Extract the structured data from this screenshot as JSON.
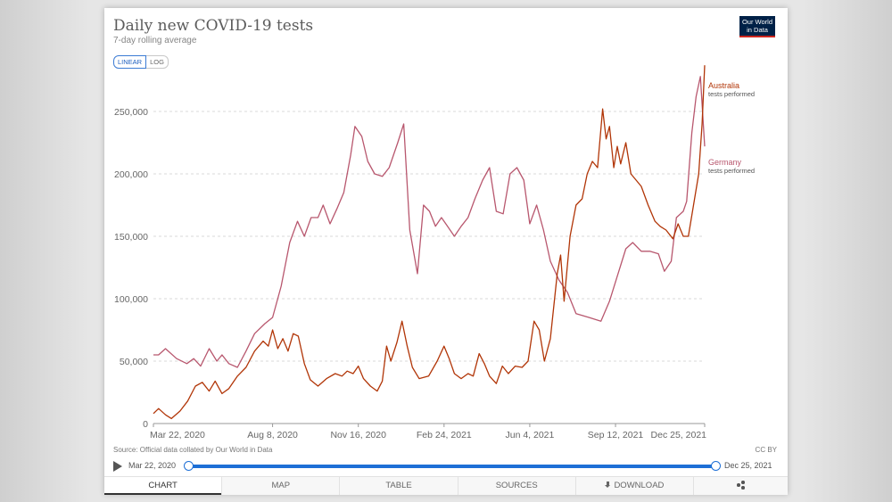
{
  "header": {
    "title": "Daily new COVID-19 tests",
    "subtitle": "7-day rolling average",
    "scale_linear": "LINEAR",
    "scale_log": "LOG",
    "logo_line1": "Our World",
    "logo_line2": "in Data"
  },
  "colors": {
    "australia": "#b13507",
    "germany": "#b8576e",
    "accent": "#1d6fd6"
  },
  "chart_data": {
    "type": "line",
    "title": "Daily new COVID-19 tests",
    "subtitle": "7-day rolling average",
    "ylim": [
      0,
      290000
    ],
    "y_ticks": [
      0,
      50000,
      100000,
      150000,
      200000,
      250000
    ],
    "y_tick_labels": [
      "0",
      "50,000",
      "100,000",
      "150,000",
      "200,000",
      "250,000"
    ],
    "x_range": [
      "2020-03-22",
      "2021-12-25"
    ],
    "x_ticks": [
      "2020-03-22",
      "2020-08-08",
      "2020-11-16",
      "2021-02-24",
      "2021-06-04",
      "2021-09-12",
      "2021-12-25"
    ],
    "x_tick_labels": [
      "Mar 22, 2020",
      "Aug 8, 2020",
      "Nov 16, 2020",
      "Feb 24, 2021",
      "Jun 4, 2021",
      "Sep 12, 2021",
      "Dec 25, 2021"
    ],
    "grid": "horizontal",
    "series": [
      {
        "name": "Australia",
        "label_sub": "tests performed",
        "color": "#b13507",
        "points": [
          [
            "2020-03-22",
            8000
          ],
          [
            "2020-03-28",
            12000
          ],
          [
            "2020-04-05",
            7000
          ],
          [
            "2020-04-12",
            4000
          ],
          [
            "2020-04-22",
            10000
          ],
          [
            "2020-05-01",
            18000
          ],
          [
            "2020-05-10",
            30000
          ],
          [
            "2020-05-18",
            33000
          ],
          [
            "2020-05-26",
            26000
          ],
          [
            "2020-06-02",
            34000
          ],
          [
            "2020-06-10",
            24000
          ],
          [
            "2020-06-18",
            28000
          ],
          [
            "2020-06-28",
            38000
          ],
          [
            "2020-07-08",
            45000
          ],
          [
            "2020-07-18",
            58000
          ],
          [
            "2020-07-28",
            66000
          ],
          [
            "2020-08-03",
            62000
          ],
          [
            "2020-08-08",
            75000
          ],
          [
            "2020-08-14",
            60000
          ],
          [
            "2020-08-20",
            68000
          ],
          [
            "2020-08-26",
            58000
          ],
          [
            "2020-09-01",
            72000
          ],
          [
            "2020-09-07",
            70000
          ],
          [
            "2020-09-14",
            48000
          ],
          [
            "2020-09-21",
            35000
          ],
          [
            "2020-09-30",
            30000
          ],
          [
            "2020-10-10",
            36000
          ],
          [
            "2020-10-20",
            40000
          ],
          [
            "2020-10-28",
            38000
          ],
          [
            "2020-11-03",
            42000
          ],
          [
            "2020-11-10",
            40000
          ],
          [
            "2020-11-16",
            46000
          ],
          [
            "2020-11-22",
            36000
          ],
          [
            "2020-11-30",
            30000
          ],
          [
            "2020-12-08",
            26000
          ],
          [
            "2020-12-14",
            34000
          ],
          [
            "2020-12-19",
            62000
          ],
          [
            "2020-12-24",
            50000
          ],
          [
            "2020-12-31",
            65000
          ],
          [
            "2021-01-06",
            82000
          ],
          [
            "2021-01-12",
            62000
          ],
          [
            "2021-01-18",
            45000
          ],
          [
            "2021-01-26",
            36000
          ],
          [
            "2021-02-06",
            38000
          ],
          [
            "2021-02-16",
            50000
          ],
          [
            "2021-02-24",
            62000
          ],
          [
            "2021-03-02",
            52000
          ],
          [
            "2021-03-08",
            40000
          ],
          [
            "2021-03-16",
            36000
          ],
          [
            "2021-03-24",
            40000
          ],
          [
            "2021-03-30",
            38000
          ],
          [
            "2021-04-06",
            56000
          ],
          [
            "2021-04-12",
            48000
          ],
          [
            "2021-04-18",
            38000
          ],
          [
            "2021-04-26",
            32000
          ],
          [
            "2021-05-03",
            46000
          ],
          [
            "2021-05-10",
            40000
          ],
          [
            "2021-05-18",
            46000
          ],
          [
            "2021-05-26",
            45000
          ],
          [
            "2021-06-02",
            50000
          ],
          [
            "2021-06-09",
            82000
          ],
          [
            "2021-06-15",
            75000
          ],
          [
            "2021-06-21",
            50000
          ],
          [
            "2021-06-28",
            68000
          ],
          [
            "2021-07-06",
            120000
          ],
          [
            "2021-07-10",
            135000
          ],
          [
            "2021-07-14",
            98000
          ],
          [
            "2021-07-21",
            150000
          ],
          [
            "2021-07-28",
            175000
          ],
          [
            "2021-08-04",
            180000
          ],
          [
            "2021-08-10",
            200000
          ],
          [
            "2021-08-16",
            210000
          ],
          [
            "2021-08-22",
            205000
          ],
          [
            "2021-08-28",
            252000
          ],
          [
            "2021-09-01",
            228000
          ],
          [
            "2021-09-05",
            238000
          ],
          [
            "2021-09-10",
            205000
          ],
          [
            "2021-09-14",
            222000
          ],
          [
            "2021-09-18",
            208000
          ],
          [
            "2021-09-24",
            225000
          ],
          [
            "2021-09-30",
            200000
          ],
          [
            "2021-10-06",
            195000
          ],
          [
            "2021-10-12",
            190000
          ],
          [
            "2021-10-20",
            175000
          ],
          [
            "2021-10-28",
            162000
          ],
          [
            "2021-11-03",
            158000
          ],
          [
            "2021-11-10",
            155000
          ],
          [
            "2021-11-18",
            148000
          ],
          [
            "2021-11-24",
            160000
          ],
          [
            "2021-11-30",
            150000
          ],
          [
            "2021-12-06",
            150000
          ],
          [
            "2021-12-12",
            175000
          ],
          [
            "2021-12-18",
            200000
          ],
          [
            "2021-12-22",
            240000
          ],
          [
            "2021-12-25",
            287000
          ]
        ]
      },
      {
        "name": "Germany",
        "label_sub": "tests performed",
        "color": "#b8576e",
        "points": [
          [
            "2020-03-22",
            55000
          ],
          [
            "2020-03-28",
            55000
          ],
          [
            "2020-04-05",
            60000
          ],
          [
            "2020-04-18",
            52000
          ],
          [
            "2020-04-30",
            48000
          ],
          [
            "2020-05-08",
            52000
          ],
          [
            "2020-05-16",
            46000
          ],
          [
            "2020-05-26",
            60000
          ],
          [
            "2020-06-04",
            50000
          ],
          [
            "2020-06-10",
            55000
          ],
          [
            "2020-06-18",
            48000
          ],
          [
            "2020-06-28",
            45000
          ],
          [
            "2020-07-08",
            58000
          ],
          [
            "2020-07-18",
            72000
          ],
          [
            "2020-07-30",
            80000
          ],
          [
            "2020-08-08",
            85000
          ],
          [
            "2020-08-18",
            110000
          ],
          [
            "2020-08-28",
            145000
          ],
          [
            "2020-09-06",
            162000
          ],
          [
            "2020-09-14",
            150000
          ],
          [
            "2020-09-22",
            165000
          ],
          [
            "2020-09-30",
            165000
          ],
          [
            "2020-10-06",
            175000
          ],
          [
            "2020-10-14",
            160000
          ],
          [
            "2020-10-22",
            172000
          ],
          [
            "2020-10-30",
            185000
          ],
          [
            "2020-11-07",
            215000
          ],
          [
            "2020-11-12",
            238000
          ],
          [
            "2020-11-20",
            230000
          ],
          [
            "2020-11-27",
            210000
          ],
          [
            "2020-12-05",
            200000
          ],
          [
            "2020-12-14",
            198000
          ],
          [
            "2020-12-22",
            205000
          ],
          [
            "2021-01-01",
            225000
          ],
          [
            "2021-01-08",
            240000
          ],
          [
            "2021-01-15",
            155000
          ],
          [
            "2021-01-24",
            120000
          ],
          [
            "2021-01-31",
            175000
          ],
          [
            "2021-02-07",
            170000
          ],
          [
            "2021-02-14",
            158000
          ],
          [
            "2021-02-21",
            165000
          ],
          [
            "2021-02-28",
            158000
          ],
          [
            "2021-03-08",
            150000
          ],
          [
            "2021-03-16",
            158000
          ],
          [
            "2021-03-24",
            165000
          ],
          [
            "2021-04-01",
            180000
          ],
          [
            "2021-04-10",
            195000
          ],
          [
            "2021-04-18",
            205000
          ],
          [
            "2021-04-26",
            170000
          ],
          [
            "2021-05-04",
            168000
          ],
          [
            "2021-05-12",
            200000
          ],
          [
            "2021-05-20",
            205000
          ],
          [
            "2021-05-28",
            195000
          ],
          [
            "2021-06-04",
            160000
          ],
          [
            "2021-06-12",
            175000
          ],
          [
            "2021-06-20",
            155000
          ],
          [
            "2021-06-28",
            130000
          ],
          [
            "2021-07-08",
            115000
          ],
          [
            "2021-07-18",
            105000
          ],
          [
            "2021-07-28",
            88000
          ],
          [
            "2021-08-12",
            85000
          ],
          [
            "2021-08-26",
            82000
          ],
          [
            "2021-09-05",
            98000
          ],
          [
            "2021-09-14",
            118000
          ],
          [
            "2021-09-24",
            140000
          ],
          [
            "2021-10-02",
            145000
          ],
          [
            "2021-10-12",
            138000
          ],
          [
            "2021-10-22",
            138000
          ],
          [
            "2021-11-01",
            136000
          ],
          [
            "2021-11-08",
            122000
          ],
          [
            "2021-11-16",
            130000
          ],
          [
            "2021-11-22",
            165000
          ],
          [
            "2021-11-30",
            170000
          ],
          [
            "2021-12-04",
            178000
          ],
          [
            "2021-12-10",
            233000
          ],
          [
            "2021-12-15",
            262000
          ],
          [
            "2021-12-20",
            278000
          ],
          [
            "2021-12-25",
            222000
          ]
        ]
      }
    ]
  },
  "footer": {
    "source": "Source: Official data collated by Our World in Data",
    "license": "CC BY",
    "timeline_start": "Mar 22, 2020",
    "timeline_end": "Dec 25, 2021"
  },
  "tabs": {
    "chart": "CHART",
    "map": "MAP",
    "table": "TABLE",
    "sources": "SOURCES",
    "download": "DOWNLOAD"
  }
}
